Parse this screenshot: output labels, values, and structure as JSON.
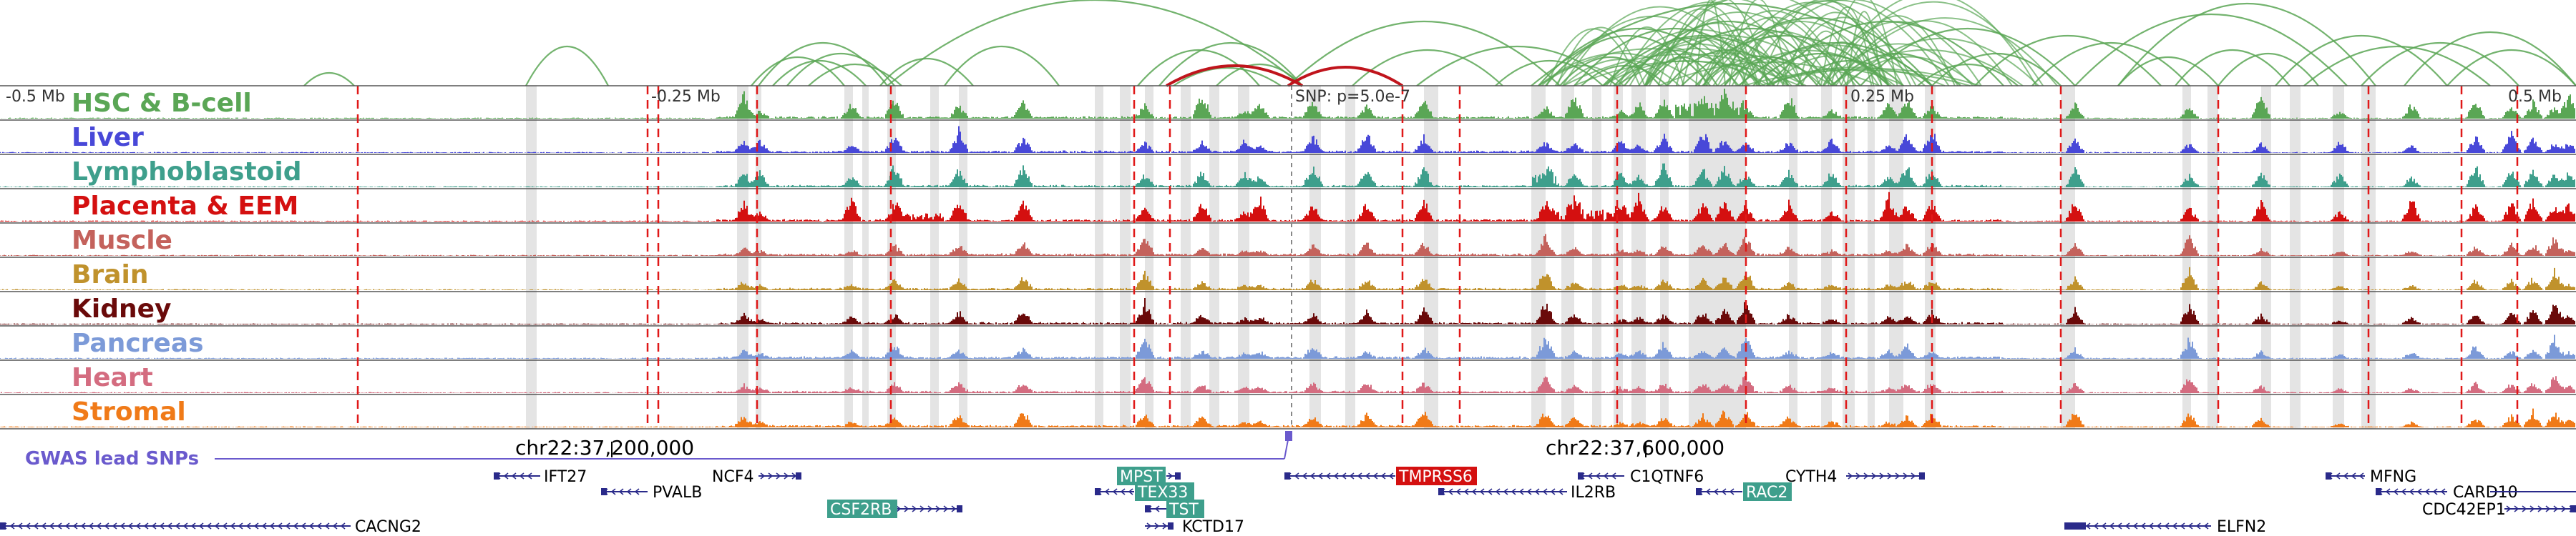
{
  "scale_labels": [
    "-0.5 Mb",
    "-0.25 Mb",
    "0.25 Mb",
    "0.5 Mb"
  ],
  "snp_label": "SNP: p=5.0e-7",
  "tracks": [
    {
      "name": "HSC & B-cell",
      "color": "#5aa655"
    },
    {
      "name": "Liver",
      "color": "#4848d8"
    },
    {
      "name": "Lymphoblastoid",
      "color": "#3e9f8c"
    },
    {
      "name": "Placenta & EEM",
      "color": "#d41010"
    },
    {
      "name": "Muscle",
      "color": "#c4625c"
    },
    {
      "name": "Brain",
      "color": "#c0922c"
    },
    {
      "name": "Kidney",
      "color": "#6a0a0a"
    },
    {
      "name": "Pancreas",
      "color": "#7c9ad8"
    },
    {
      "name": "Heart",
      "color": "#d46c80"
    },
    {
      "name": "Stromal",
      "color": "#f07a18"
    }
  ],
  "gwas_label": "GWAS lead SNPs",
  "coordinates": [
    "chr22:37,200,000",
    "chr22:37,600,000"
  ],
  "genes": [
    {
      "name": "IFT27",
      "highlight": false
    },
    {
      "name": "NCF4",
      "highlight": false
    },
    {
      "name": "PVALB",
      "highlight": false
    },
    {
      "name": "CSF2RB",
      "highlight": true
    },
    {
      "name": "CACNG2",
      "highlight": false
    },
    {
      "name": "MPST",
      "highlight": true
    },
    {
      "name": "TEX33",
      "highlight": true
    },
    {
      "name": "TST",
      "highlight": true
    },
    {
      "name": "KCTD17",
      "highlight": false
    },
    {
      "name": "TMPRSS6",
      "highlight": true
    },
    {
      "name": "IL2RB",
      "highlight": false
    },
    {
      "name": "C1QTNF6",
      "highlight": false
    },
    {
      "name": "RAC2",
      "highlight": true
    },
    {
      "name": "CYTH4",
      "highlight": false
    },
    {
      "name": "ELFN2",
      "highlight": false
    },
    {
      "name": "MFNG",
      "highlight": false
    },
    {
      "name": "CARD10",
      "highlight": false
    },
    {
      "name": "CDC42EP1",
      "highlight": false
    }
  ],
  "colors": {
    "loop": "#5aa655",
    "snp_loop": "#c0141c",
    "region_line": "#e01818",
    "shade": "#e4e4e4",
    "gene": "#2a2a8a",
    "gene_highlight": "#3e9f8c",
    "gene_highlight_red": "#d41010",
    "gwas": "#6a5acd"
  }
}
